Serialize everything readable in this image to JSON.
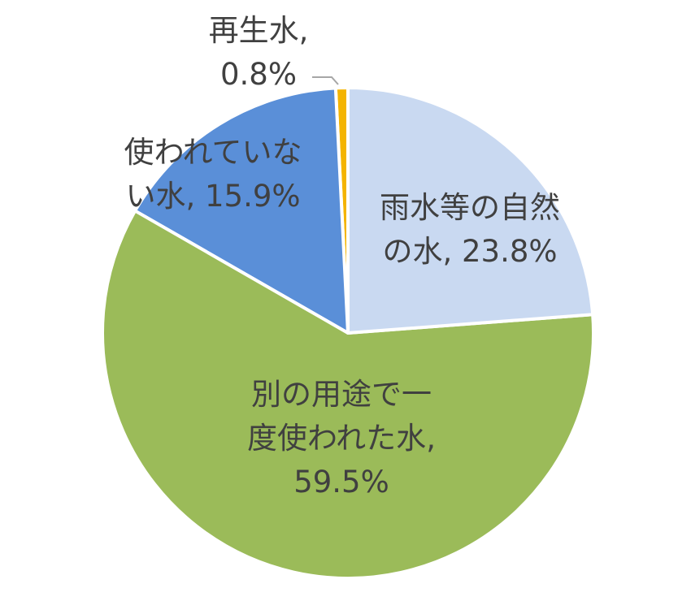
{
  "chart_data": {
    "type": "pie",
    "categories": [
      "雨水等の自然の水",
      "別の用途で一度使われた水",
      "使われていない水",
      "再生水"
    ],
    "values": [
      23.8,
      59.5,
      15.9,
      0.8
    ],
    "value_labels": [
      "23.8%",
      "59.5%",
      "15.9%",
      "0.8%"
    ],
    "separator": ", ",
    "colors": [
      "#c9d9f1",
      "#9bbb59",
      "#5a8fd8",
      "#f4b400"
    ]
  }
}
